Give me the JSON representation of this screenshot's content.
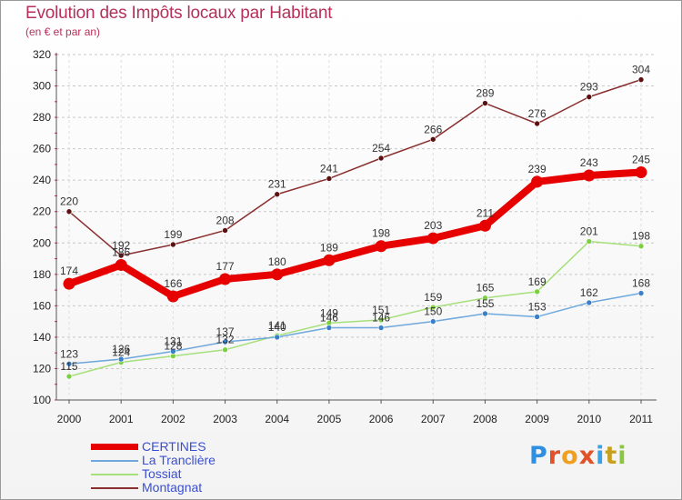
{
  "header": {
    "title": "Evolution des Impôts locaux par Habitant",
    "subtitle": "(en € et par an)"
  },
  "logo": {
    "letters": [
      "P",
      "r",
      "o",
      "x",
      "i",
      "t",
      "i"
    ],
    "colors": [
      "#2f8fe0",
      "#e0522a",
      "#f0a020",
      "#e0522a",
      "#3aa0e8",
      "#c8a020",
      "#8cc640"
    ]
  },
  "chart_data": {
    "type": "line",
    "title": "Evolution des Impôts locaux par Habitant",
    "subtitle": "(en € et par an)",
    "x": [
      "2000",
      "2001",
      "2002",
      "2003",
      "2004",
      "2005",
      "2006",
      "2007",
      "2008",
      "2009",
      "2010",
      "2011"
    ],
    "ylim": [
      100,
      320
    ],
    "yticks": [
      100,
      120,
      140,
      160,
      180,
      200,
      220,
      240,
      260,
      280,
      300,
      320
    ],
    "grid": "horizontal dashed",
    "legend_position": "bottom-left",
    "series": [
      {
        "name": "CERTINES",
        "color": "#e60000",
        "thick": true,
        "values": [
          174,
          186,
          166,
          177,
          180,
          189,
          198,
          203,
          211,
          239,
          243,
          245
        ],
        "labels": [
          "174",
          "186",
          "166",
          "177",
          "180",
          "189",
          "198",
          "203",
          "211",
          "239",
          "243",
          "245"
        ]
      },
      {
        "name": "La Tranclière",
        "color": "#6fa8dc",
        "marker": "#3a7fc8",
        "values": [
          123,
          126,
          131,
          137,
          140,
          146,
          146,
          150,
          155,
          153,
          162,
          168
        ],
        "labels": [
          "123",
          "126",
          "131",
          "137",
          "140",
          "146",
          "146",
          "150",
          "155",
          "153",
          "162",
          "168"
        ]
      },
      {
        "name": "Tossiat",
        "color": "#a6e07a",
        "marker": "#7cd040",
        "values": [
          115,
          124,
          128,
          132,
          141,
          149,
          151,
          159,
          165,
          169,
          201,
          198
        ],
        "labels": [
          "115",
          "124",
          "128",
          "132",
          "141",
          "149",
          "151",
          "159",
          "165",
          "169",
          "201",
          "198"
        ]
      },
      {
        "name": "Montagnat",
        "color": "#8a2f2f",
        "marker": "#5a1010",
        "values": [
          220,
          192,
          199,
          208,
          231,
          241,
          254,
          266,
          289,
          276,
          293,
          304
        ],
        "labels": [
          "220",
          "192",
          "199",
          "208",
          "231",
          "241",
          "254",
          "266",
          "289",
          "276",
          "293",
          "304"
        ]
      }
    ]
  }
}
